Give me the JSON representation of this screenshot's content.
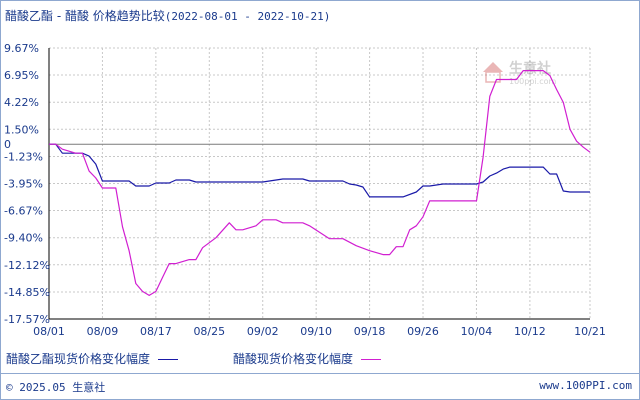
{
  "title": {
    "main": "醋酸乙酯 - 醋酸 价格趋势比较",
    "range": "(2022-08-01 - 2022-10-21)"
  },
  "watermark": {
    "text": "生意社",
    "url": "100ppi.com"
  },
  "footer": {
    "copyright_symbol": "©",
    "year": "2025.05",
    "brand": "生意社",
    "site": "www.100PPI.com"
  },
  "colors": {
    "series_ethyl_acetate": "#1a1aa8",
    "series_acetic_acid": "#d11fd1",
    "axis": "#000000",
    "grid": "#c8c8c8",
    "zero_line": "#7a7a7a",
    "text": "#1a3a8c"
  },
  "chart_data": {
    "type": "line",
    "title": "醋酸乙酯 - 醋酸 价格趋势比较(2022-08-01 - 2022-10-21)",
    "xlabel": "",
    "ylabel": "",
    "x_ticks": [
      "08/01",
      "08/09",
      "08/17",
      "08/25",
      "09/02",
      "09/10",
      "09/18",
      "09/26",
      "10/04",
      "10/12",
      "10/21"
    ],
    "y_ticks": [
      "9.67%",
      "6.95%",
      "4.22%",
      "1.50%",
      "-1.23%",
      "-3.95%",
      "-6.67%",
      "-9.40%",
      "-12.12%",
      "-14.85%",
      "-17.57%"
    ],
    "y_tick_values": [
      9.67,
      6.95,
      4.22,
      1.5,
      -1.23,
      -3.95,
      -6.67,
      -9.4,
      -12.12,
      -14.85,
      -17.57
    ],
    "zero_label": "0",
    "ylim": [
      -17.57,
      9.67
    ],
    "x_start": "2022-08-01",
    "x_end": "2022-10-21",
    "grid": true,
    "legend_position": "bottom",
    "series": [
      {
        "name": "醋酸乙酯现货价格变化幅度",
        "color": "#1a1aa8",
        "points": [
          [
            "08/01",
            0.0
          ],
          [
            "08/02",
            0.0
          ],
          [
            "08/03",
            -0.9
          ],
          [
            "08/05",
            -0.9
          ],
          [
            "08/06",
            -0.9
          ],
          [
            "08/07",
            -1.2
          ],
          [
            "08/08",
            -2.0
          ],
          [
            "08/09",
            -3.7
          ],
          [
            "08/10",
            -3.7
          ],
          [
            "08/12",
            -3.7
          ],
          [
            "08/13",
            -3.7
          ],
          [
            "08/14",
            -4.2
          ],
          [
            "08/16",
            -4.2
          ],
          [
            "08/17",
            -3.9
          ],
          [
            "08/19",
            -3.9
          ],
          [
            "08/20",
            -3.6
          ],
          [
            "08/22",
            -3.6
          ],
          [
            "08/23",
            -3.8
          ],
          [
            "08/24",
            -3.8
          ],
          [
            "08/26",
            -3.8
          ],
          [
            "09/01",
            -3.8
          ],
          [
            "09/02",
            -3.8
          ],
          [
            "09/05",
            -3.5
          ],
          [
            "09/08",
            -3.5
          ],
          [
            "09/09",
            -3.7
          ],
          [
            "09/12",
            -3.7
          ],
          [
            "09/14",
            -3.7
          ],
          [
            "09/15",
            -4.0
          ],
          [
            "09/16",
            -4.1
          ],
          [
            "09/17",
            -4.3
          ],
          [
            "09/18",
            -5.3
          ],
          [
            "09/20",
            -5.3
          ],
          [
            "09/21",
            -5.3
          ],
          [
            "09/22",
            -5.3
          ],
          [
            "09/23",
            -5.3
          ],
          [
            "09/25",
            -4.8
          ],
          [
            "09/26",
            -4.2
          ],
          [
            "09/27",
            -4.2
          ],
          [
            "09/29",
            -4.0
          ],
          [
            "10/03",
            -4.0
          ],
          [
            "10/04",
            -4.0
          ],
          [
            "10/05",
            -3.8
          ],
          [
            "10/06",
            -3.2
          ],
          [
            "10/07",
            -2.9
          ],
          [
            "10/08",
            -2.5
          ],
          [
            "10/09",
            -2.3
          ],
          [
            "10/11",
            -2.3
          ],
          [
            "10/13",
            -2.3
          ],
          [
            "10/14",
            -2.3
          ],
          [
            "10/15",
            -3.0
          ],
          [
            "10/16",
            -3.0
          ],
          [
            "10/17",
            -4.7
          ],
          [
            "10/18",
            -4.8
          ],
          [
            "10/21",
            -4.8
          ]
        ]
      },
      {
        "name": "醋酸现货价格变化幅度",
        "color": "#d11fd1",
        "points": [
          [
            "08/01",
            0.0
          ],
          [
            "08/02",
            0.0
          ],
          [
            "08/03",
            -0.5
          ],
          [
            "08/05",
            -0.9
          ],
          [
            "08/06",
            -0.9
          ],
          [
            "08/07",
            -2.7
          ],
          [
            "08/08",
            -3.4
          ],
          [
            "08/09",
            -4.4
          ],
          [
            "08/10",
            -4.4
          ],
          [
            "08/11",
            -4.4
          ],
          [
            "08/12",
            -8.3
          ],
          [
            "08/13",
            -10.7
          ],
          [
            "08/14",
            -14.0
          ],
          [
            "08/15",
            -14.8
          ],
          [
            "08/16",
            -15.2
          ],
          [
            "08/17",
            -14.8
          ],
          [
            "08/18",
            -13.4
          ],
          [
            "08/19",
            -12.0
          ],
          [
            "08/20",
            -12.0
          ],
          [
            "08/22",
            -11.6
          ],
          [
            "08/23",
            -11.6
          ],
          [
            "08/24",
            -10.4
          ],
          [
            "08/26",
            -9.4
          ],
          [
            "08/28",
            -7.9
          ],
          [
            "08/29",
            -8.6
          ],
          [
            "08/30",
            -8.6
          ],
          [
            "09/01",
            -8.2
          ],
          [
            "09/02",
            -7.6
          ],
          [
            "09/04",
            -7.6
          ],
          [
            "09/05",
            -7.9
          ],
          [
            "09/07",
            -7.9
          ],
          [
            "09/08",
            -7.9
          ],
          [
            "09/09",
            -8.2
          ],
          [
            "09/12",
            -9.5
          ],
          [
            "09/14",
            -9.5
          ],
          [
            "09/16",
            -10.2
          ],
          [
            "09/18",
            -10.7
          ],
          [
            "09/20",
            -11.1
          ],
          [
            "09/21",
            -11.1
          ],
          [
            "09/22",
            -10.3
          ],
          [
            "09/23",
            -10.3
          ],
          [
            "09/24",
            -8.6
          ],
          [
            "09/25",
            -8.2
          ],
          [
            "09/26",
            -7.3
          ],
          [
            "09/27",
            -5.7
          ],
          [
            "09/29",
            -5.7
          ],
          [
            "10/03",
            -5.7
          ],
          [
            "10/04",
            -5.7
          ],
          [
            "10/05",
            -1.3
          ],
          [
            "10/06",
            4.8
          ],
          [
            "10/07",
            6.5
          ],
          [
            "10/10",
            6.5
          ],
          [
            "10/11",
            7.4
          ],
          [
            "10/12",
            7.4
          ],
          [
            "10/13",
            7.4
          ],
          [
            "10/14",
            7.4
          ],
          [
            "10/15",
            6.9
          ],
          [
            "10/16",
            5.5
          ],
          [
            "10/17",
            4.2
          ],
          [
            "10/18",
            1.5
          ],
          [
            "10/19",
            0.3
          ],
          [
            "10/20",
            -0.3
          ],
          [
            "10/21",
            -0.8
          ]
        ]
      }
    ]
  }
}
